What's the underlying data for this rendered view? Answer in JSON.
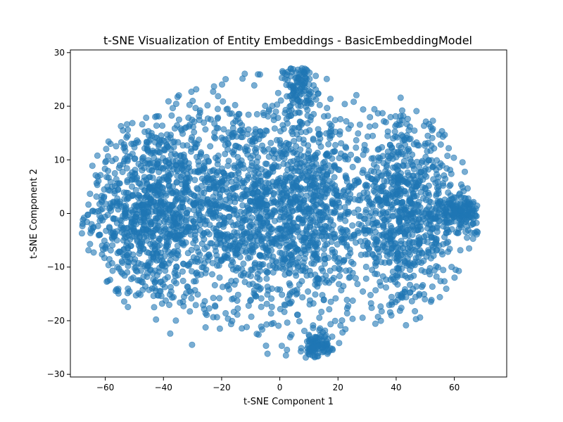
{
  "chart_data": {
    "type": "scatter",
    "title": "t-SNE Visualization of Entity Embeddings - BasicEmbeddingModel",
    "xlabel": "t-SNE Component 1",
    "ylabel": "t-SNE Component 2",
    "xlim": [
      -72,
      78
    ],
    "ylim": [
      -30.5,
      30.5
    ],
    "xticks": [
      -60,
      -40,
      -20,
      0,
      20,
      40,
      60
    ],
    "yticks": [
      -30,
      -20,
      -10,
      0,
      10,
      20,
      30
    ],
    "grid": false,
    "legend": "none",
    "point_color": "#1f77b4",
    "point_alpha": 0.6,
    "point_count_estimate": 4000,
    "clusters": [
      {
        "center": [
          -45,
          0
        ],
        "spread": [
          11,
          9
        ],
        "count": 900
      },
      {
        "center": [
          -15,
          2
        ],
        "spread": [
          13,
          10
        ],
        "count": 850
      },
      {
        "center": [
          10,
          0
        ],
        "spread": [
          12,
          10
        ],
        "count": 850
      },
      {
        "center": [
          43,
          0
        ],
        "spread": [
          9,
          9
        ],
        "count": 800
      },
      {
        "center": [
          63,
          0
        ],
        "spread": [
          4,
          2
        ],
        "count": 160
      },
      {
        "center": [
          7,
          24
        ],
        "spread": [
          3,
          3
        ],
        "count": 120
      },
      {
        "center": [
          13,
          -25
        ],
        "spread": [
          2.5,
          1.5
        ],
        "count": 90
      }
    ]
  }
}
